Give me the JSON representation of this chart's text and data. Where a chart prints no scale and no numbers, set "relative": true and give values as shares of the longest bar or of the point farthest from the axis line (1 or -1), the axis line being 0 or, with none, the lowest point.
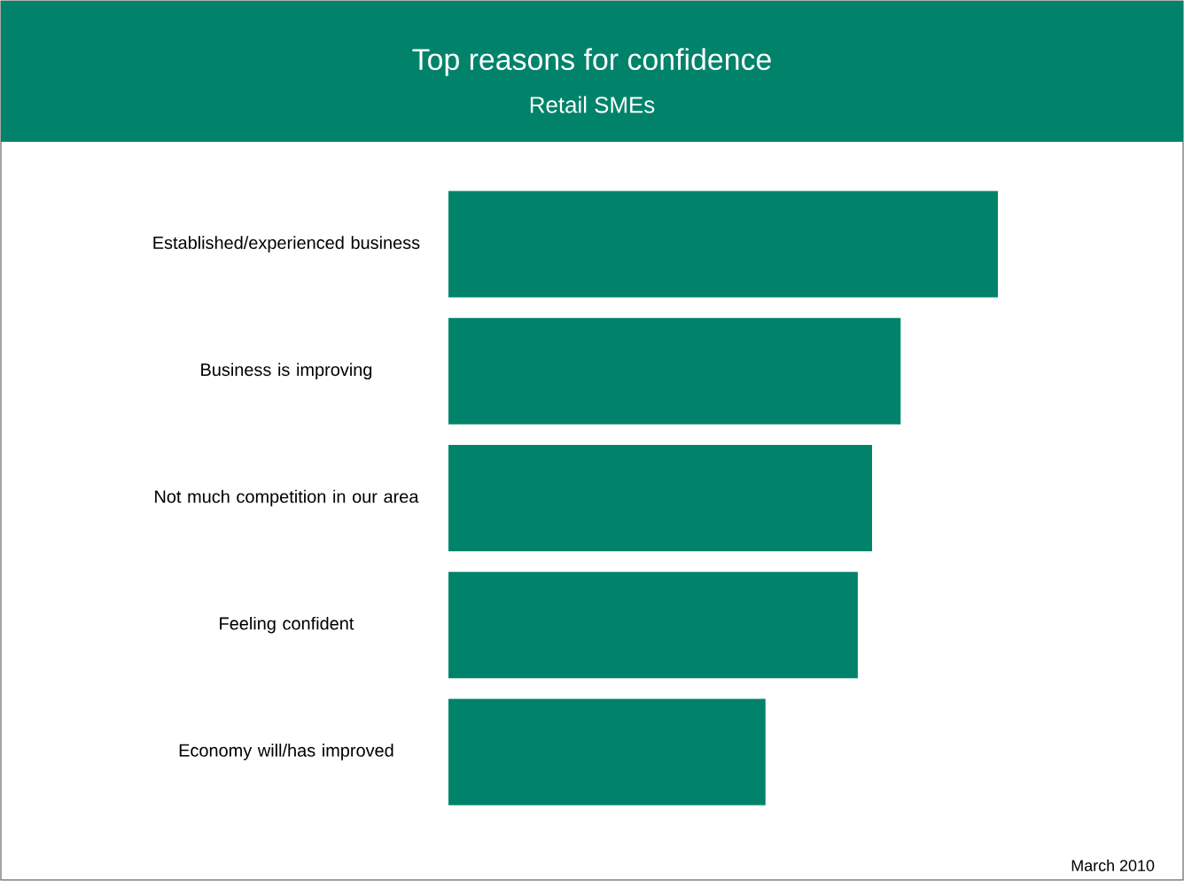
{
  "chart_data": {
    "type": "bar",
    "orientation": "horizontal",
    "relative": true,
    "title": "Top reasons for confidence",
    "subtitle": "Retail SMEs",
    "categories": [
      "Established/experienced business",
      "Business is improving",
      "Not much competition in our area",
      "Feeling confident",
      "Economy will/has improved"
    ],
    "values": [
      1,
      0.823,
      0.771,
      0.745,
      0.577
    ],
    "color": "#00836a",
    "annotations": [
      "March 2010"
    ]
  }
}
